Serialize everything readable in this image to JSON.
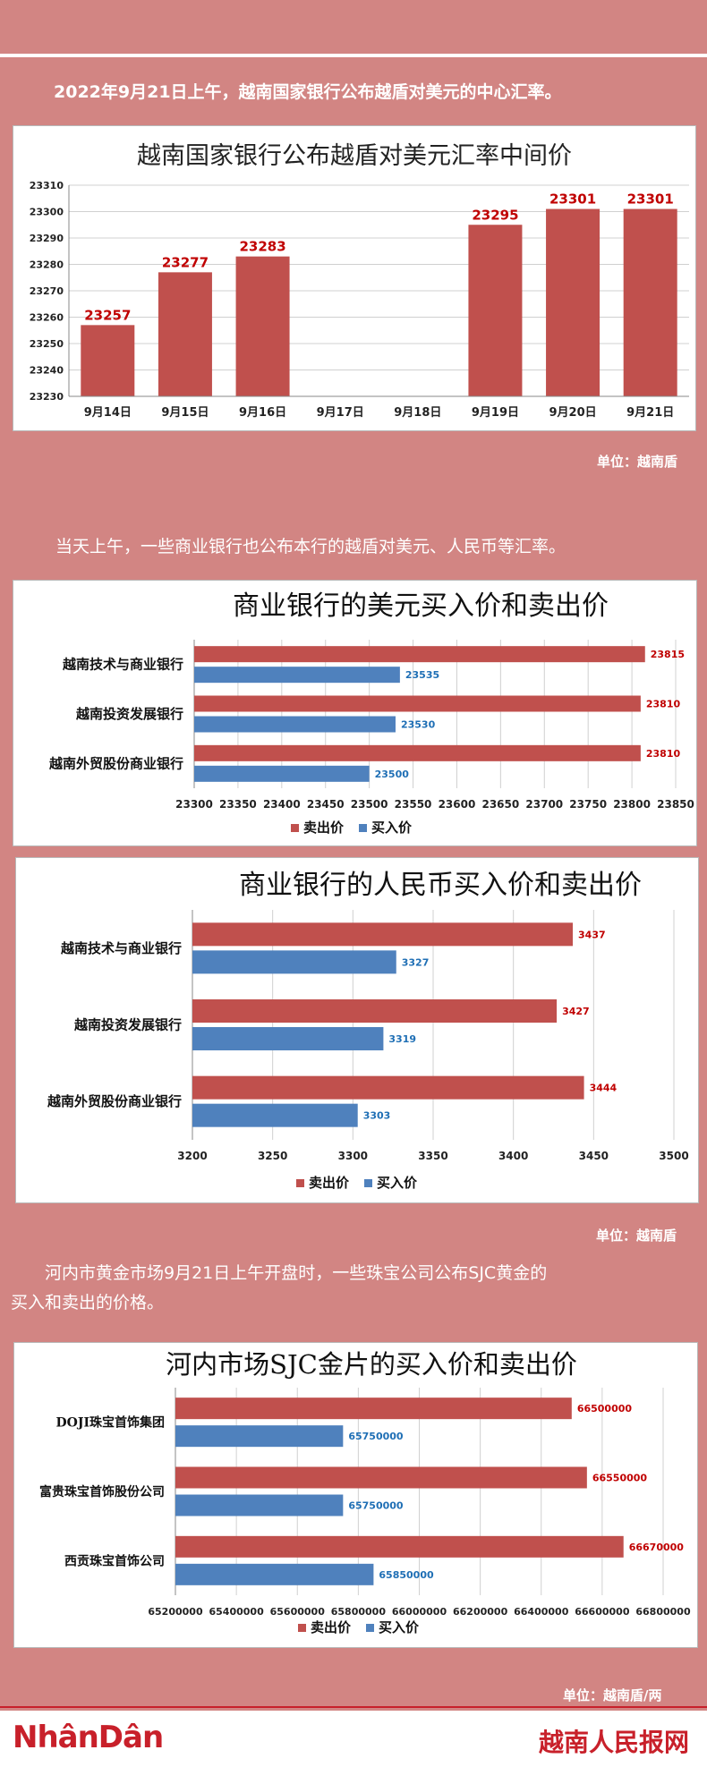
{
  "intro1": "2022年9月21日上午，越南国家银行公布越盾对美元的中心汇率。",
  "unit1": "单位：越南盾",
  "intro2": "当天上午，一些商业银行也公布本行的越盾对美元、人民币等汇率。",
  "unit2": "单位：越南盾",
  "intro3a": "河内市黄金市场9月21日上午开盘时，一些珠宝公司公布SJC黄金的",
  "intro3b": "买入和卖出的价格。",
  "unit3": "单位：越南盾/两",
  "logo_left": "NhânDân",
  "logo_right": "越南人民报网",
  "colors": {
    "sell": "#c0504d",
    "buy": "#4f81bd",
    "bg": "#d28583",
    "title": "#1a1a1a"
  },
  "chart_data": [
    {
      "type": "bar",
      "title": "越南国家银行公布越盾对美元汇率中间价",
      "categories": [
        "9月14日",
        "9月15日",
        "9月16日",
        "9月17日",
        "9月18日",
        "9月19日",
        "9月20日",
        "9月21日"
      ],
      "values": [
        23257,
        23277,
        23283,
        null,
        null,
        23295,
        23301,
        23301
      ],
      "ylim": [
        23230,
        23310
      ],
      "yticks": [
        23230,
        23240,
        23250,
        23260,
        23270,
        23280,
        23290,
        23300,
        23310
      ],
      "grid": true,
      "color": "#c0504d"
    },
    {
      "type": "bar",
      "orientation": "horizontal",
      "title": "商业银行的美元买入价和卖出价",
      "categories": [
        "越南技术与商业银行",
        "越南投资发展银行",
        "越南外贸股份商业银行"
      ],
      "series": [
        {
          "name": "卖出价",
          "values": [
            23815,
            23810,
            23810
          ],
          "color": "#c0504d"
        },
        {
          "name": "买入价",
          "values": [
            23535,
            23530,
            23500
          ],
          "color": "#4f81bd"
        }
      ],
      "xlim": [
        23300,
        23850
      ],
      "xticks": [
        23300,
        23350,
        23400,
        23450,
        23500,
        23550,
        23600,
        23650,
        23700,
        23750,
        23800,
        23850
      ],
      "grid": true,
      "legend": "bottom"
    },
    {
      "type": "bar",
      "orientation": "horizontal",
      "title": "商业银行的人民币买入价和卖出价",
      "categories": [
        "越南技术与商业银行",
        "越南投资发展银行",
        "越南外贸股份商业银行"
      ],
      "series": [
        {
          "name": "卖出价",
          "values": [
            3437,
            3427,
            3444
          ],
          "color": "#c0504d"
        },
        {
          "name": "买入价",
          "values": [
            3327,
            3319,
            3303
          ],
          "color": "#4f81bd"
        }
      ],
      "xlim": [
        3200,
        3500
      ],
      "xticks": [
        3200,
        3250,
        3300,
        3350,
        3400,
        3450,
        3500
      ],
      "grid": true,
      "legend": "bottom"
    },
    {
      "type": "bar",
      "orientation": "horizontal",
      "title": "河内市场SJC金片的买入价和卖出价",
      "categories": [
        "DOJI珠宝首饰集团",
        "富贵珠宝首饰股份公司",
        "西贡珠宝首饰公司"
      ],
      "series": [
        {
          "name": "卖出价",
          "values": [
            66500000,
            66550000,
            66670000
          ],
          "color": "#c0504d"
        },
        {
          "name": "买入价",
          "values": [
            65750000,
            65750000,
            65850000
          ],
          "color": "#4f81bd"
        }
      ],
      "xlim": [
        65200000,
        66800000
      ],
      "xticks": [
        65200000,
        65400000,
        65600000,
        65800000,
        66000000,
        66200000,
        66400000,
        66600000,
        66800000
      ],
      "grid": true,
      "legend": "bottom"
    }
  ]
}
